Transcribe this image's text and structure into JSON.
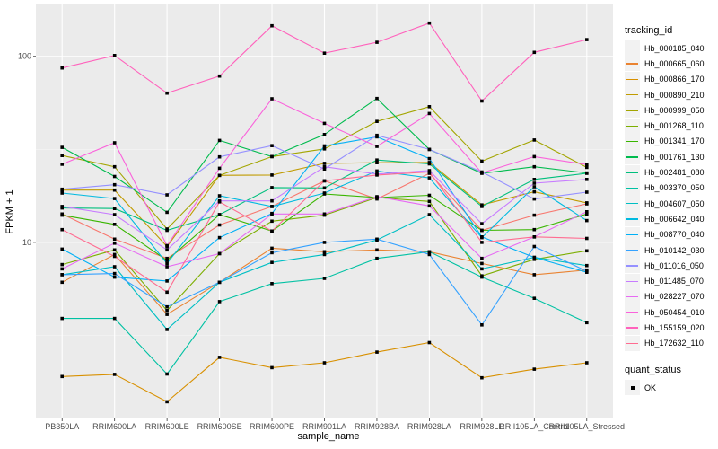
{
  "chart_data": {
    "type": "line",
    "xlabel": "sample_name",
    "ylabel": "FPKM + 1",
    "yscale": "log10",
    "ylim": [
      1.13,
      190
    ],
    "yticks": [
      10,
      100
    ],
    "ytick_labels": [
      "10",
      "100"
    ],
    "grid": true,
    "categories": [
      "PB350LA",
      "RRIM600LA",
      "RRIM600LE",
      "RRIM600SE",
      "RRIM600PE",
      "RRIM901LA",
      "RRIM928BA",
      "RRIM928LA",
      "RRIM928LE",
      "RRII105LA_Control",
      "RRII105LA_Stressed"
    ],
    "legend_title": "tracking_id",
    "legend_position": "right",
    "series": [
      {
        "name": "Hb_000185_040",
        "color": "#F8766D",
        "values": [
          14.2,
          10.4,
          8.2,
          12.4,
          15.6,
          21.4,
          17.1,
          23.5,
          11.6,
          14.0,
          16.1
        ]
      },
      {
        "name": "Hb_000665_060",
        "color": "#EA8331",
        "values": [
          6.1,
          8.6,
          4.1,
          6.1,
          9.3,
          8.9,
          9.1,
          8.9,
          7.7,
          6.7,
          7.1
        ]
      },
      {
        "name": "Hb_000866_170",
        "color": "#D89000",
        "values": [
          1.9,
          1.95,
          1.39,
          2.41,
          2.12,
          2.25,
          2.57,
          2.89,
          1.87,
          2.08,
          2.25
        ]
      },
      {
        "name": "Hb_000890_210",
        "color": "#C09B00",
        "values": [
          19.1,
          19.1,
          9.5,
          22.9,
          23.0,
          26.6,
          26.8,
          26.9,
          15.9,
          18.7,
          16.3
        ]
      },
      {
        "name": "Hb_000999_050",
        "color": "#A3A500",
        "values": [
          29.3,
          25.5,
          11.8,
          22.9,
          28.9,
          31.8,
          44.7,
          53.6,
          27.3,
          35.5,
          25.3
        ]
      },
      {
        "name": "Hb_001268_110",
        "color": "#7CAE00",
        "values": [
          7.6,
          9.1,
          4.3,
          8.7,
          13.0,
          14.0,
          17.4,
          16.6,
          6.6,
          8.1,
          9.0
        ]
      },
      {
        "name": "Hb_001341_170",
        "color": "#39B600",
        "values": [
          14.0,
          12.5,
          8.0,
          14.1,
          11.5,
          18.2,
          17.4,
          17.9,
          11.6,
          11.7,
          14.2
        ]
      },
      {
        "name": "Hb_001761_130",
        "color": "#00BB4E",
        "values": [
          32.4,
          22.6,
          14.5,
          35.3,
          28.9,
          38.0,
          59.3,
          31.6,
          23.5,
          25.5,
          23.6
        ]
      },
      {
        "name": "Hb_002481_080",
        "color": "#00BF7D",
        "values": [
          15.3,
          15.2,
          11.6,
          14.1,
          19.7,
          19.6,
          27.7,
          26.4,
          15.6,
          21.8,
          23.5
        ]
      },
      {
        "name": "Hb_003370_050",
        "color": "#00C1A3",
        "values": [
          3.9,
          3.9,
          1.96,
          4.8,
          6.0,
          6.4,
          8.2,
          8.9,
          6.5,
          5.0,
          3.7
        ]
      },
      {
        "name": "Hb_004607_050",
        "color": "#00BFC4",
        "values": [
          6.7,
          7.4,
          3.4,
          6.1,
          7.8,
          8.6,
          10.3,
          14.1,
          7.2,
          8.3,
          7.5
        ]
      },
      {
        "name": "Hb_006642_040",
        "color": "#00BAE0",
        "values": [
          18.4,
          17.2,
          7.7,
          17.8,
          15.6,
          18.4,
          24.2,
          22.2,
          10.6,
          19.9,
          13.1
        ]
      },
      {
        "name": "Hb_008770_040",
        "color": "#00B0F6",
        "values": [
          9.2,
          6.5,
          6.2,
          10.6,
          14.3,
          33.0,
          36.9,
          28.2,
          10.7,
          8.3,
          6.9
        ]
      },
      {
        "name": "Hb_010142_030",
        "color": "#35A2FF",
        "values": [
          6.7,
          6.8,
          4.5,
          6.1,
          8.8,
          10.0,
          10.4,
          8.6,
          3.6,
          9.5,
          7.0
        ]
      },
      {
        "name": "Hb_011016_050",
        "color": "#9590FF",
        "values": [
          19.3,
          20.4,
          18.0,
          28.8,
          33.1,
          24.8,
          37.6,
          31.6,
          23.9,
          17.1,
          18.6
        ]
      },
      {
        "name": "Hb_011485_070",
        "color": "#C77CFF",
        "values": [
          15.6,
          14.1,
          9.1,
          16.7,
          16.7,
          25.5,
          23.3,
          24.3,
          12.6,
          20.8,
          21.8
        ]
      },
      {
        "name": "Hb_028227_070",
        "color": "#E76BF3",
        "values": [
          7.2,
          9.9,
          7.4,
          8.7,
          14.2,
          14.2,
          17.6,
          15.7,
          8.2,
          10.7,
          14.6
        ]
      },
      {
        "name": "Hb_050454_010",
        "color": "#FA62DB",
        "values": [
          26.3,
          34.3,
          9.6,
          25.0,
          59.1,
          43.6,
          32.8,
          49.3,
          23.6,
          28.9,
          26.2
        ]
      },
      {
        "name": "Hb_155159_020",
        "color": "#FF62BC",
        "values": [
          86.6,
          101,
          63.4,
          78.3,
          146,
          104,
          119,
          151,
          57.5,
          105,
          123
        ]
      },
      {
        "name": "Hb_172632_110",
        "color": "#FF6C91",
        "values": [
          11.7,
          8.4,
          5.4,
          16.5,
          11.5,
          21.4,
          23.0,
          23.9,
          10.0,
          10.7,
          10.5
        ]
      }
    ],
    "shape_legend": {
      "title": "quant_status",
      "items": [
        "OK"
      ]
    }
  }
}
